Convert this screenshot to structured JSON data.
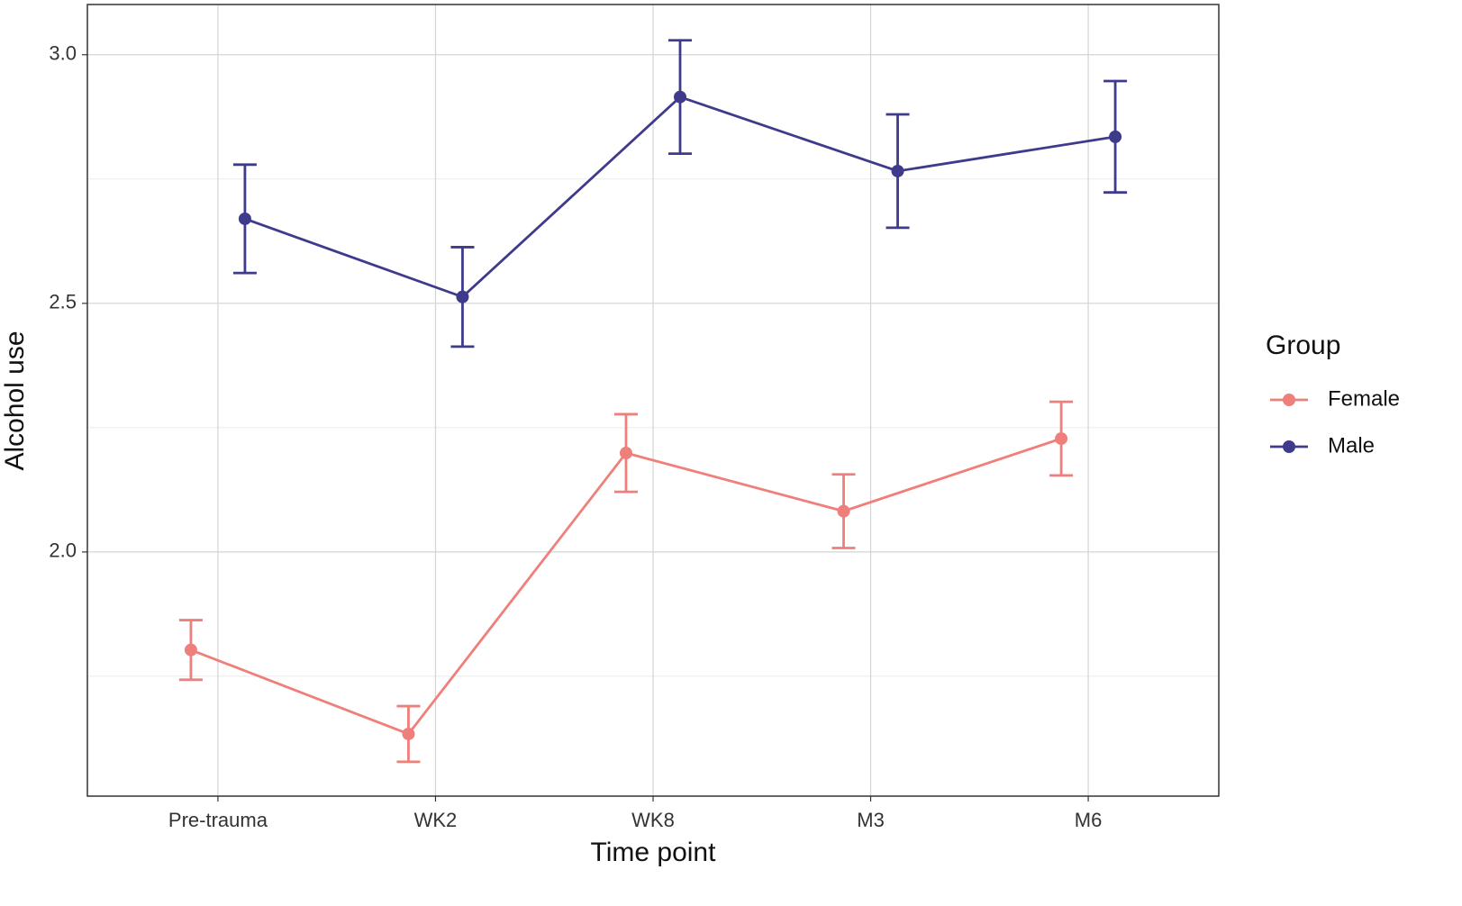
{
  "chart_data": {
    "type": "line",
    "x_label": "Time point",
    "y_label": "Alcohol use",
    "categories": [
      "Pre-trauma",
      "WK2",
      "WK8",
      "M3",
      "M6"
    ],
    "series": [
      {
        "name": "Female",
        "color": "#ef7f7a",
        "values": [
          1.803,
          1.634,
          2.199,
          2.082,
          2.228
        ],
        "errors": [
          0.06,
          0.056,
          0.078,
          0.074,
          0.074
        ]
      },
      {
        "name": "Male",
        "color": "#3e3a8c",
        "values": [
          2.67,
          2.513,
          2.915,
          2.766,
          2.835
        ],
        "errors": [
          0.109,
          0.1,
          0.114,
          0.114,
          0.112
        ]
      }
    ],
    "ylim": [
      1.509,
      3.101
    ],
    "yticks": [
      {
        "value": 2,
        "label": "2.0"
      },
      2.5,
      {
        "value": 3,
        "label": "3.0"
      }
    ],
    "yminorticks": [
      1.75,
      2.25,
      2.75
    ],
    "grid": true,
    "legend_title": "Group",
    "legend_position": "right"
  }
}
